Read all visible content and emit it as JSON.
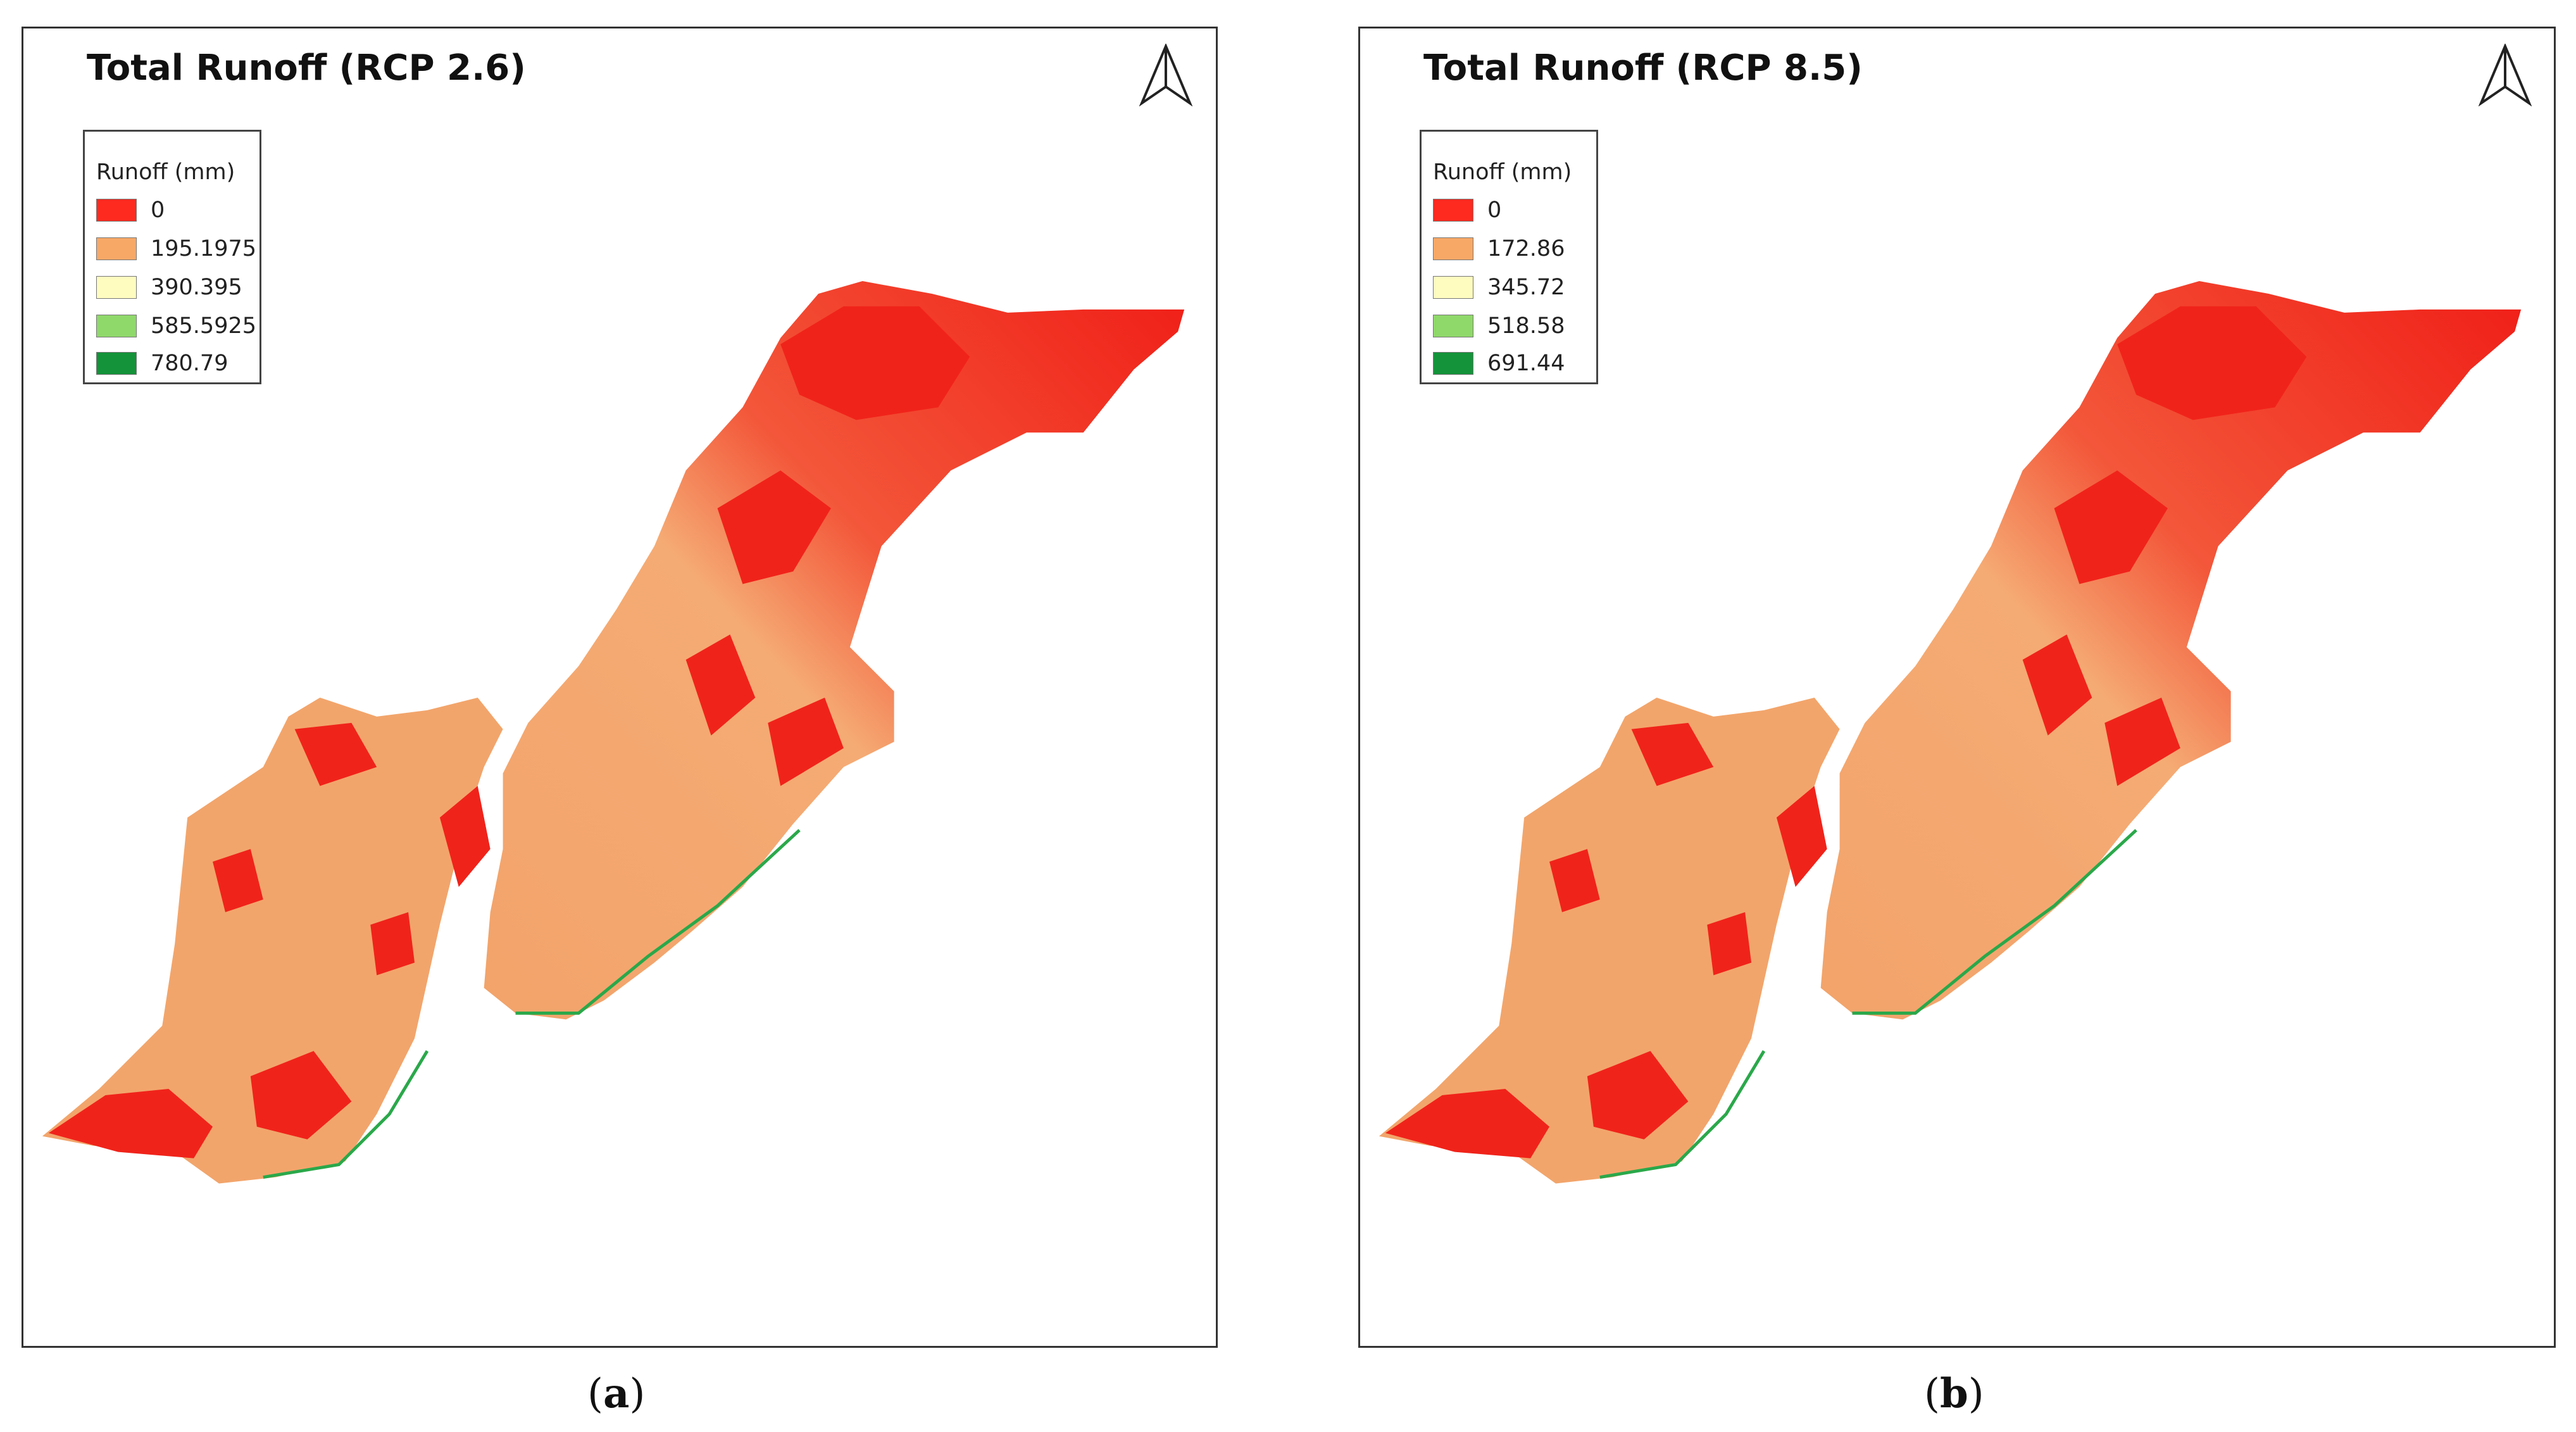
{
  "panels": [
    {
      "title": "Total Runoff (RCP 2.6)",
      "legend": {
        "title": "Runoff (mm)",
        "items": [
          {
            "label": "0",
            "color": "#ff2a1f"
          },
          {
            "label": "195.1975",
            "color": "#f7a867"
          },
          {
            "label": "390.395",
            "color": "#fffcc0"
          },
          {
            "label": "585.5925",
            "color": "#8fd86a"
          },
          {
            "label": "780.79",
            "color": "#14933a"
          }
        ]
      },
      "caption_letter": "a"
    },
    {
      "title": "Total Runoff (RCP 8.5)",
      "legend": {
        "title": "Runoff (mm)",
        "items": [
          {
            "label": "0",
            "color": "#ff2a1f"
          },
          {
            "label": "172.86",
            "color": "#f7a867"
          },
          {
            "label": "345.72",
            "color": "#fffcc0"
          },
          {
            "label": "518.58",
            "color": "#8fd86a"
          },
          {
            "label": "691.44",
            "color": "#14933a"
          }
        ]
      },
      "caption_letter": "b"
    }
  ],
  "colors": {
    "north_valley": "#f01e17",
    "south_plain": "#f3a468",
    "coast": "#2aa84a"
  },
  "icons": [
    "north-arrow-icon"
  ]
}
